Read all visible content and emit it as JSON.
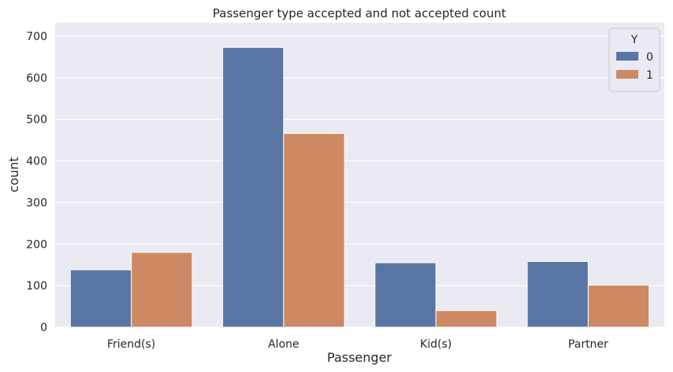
{
  "chart_data": {
    "type": "bar",
    "title": "Passenger type accepted and not accepted count",
    "xlabel": "Passenger",
    "ylabel": "count",
    "categories": [
      "Friend(s)",
      "Alone",
      "Kid(s)",
      "Partner"
    ],
    "series": [
      {
        "name": "0",
        "values": [
          138,
          673,
          155,
          158
        ],
        "color": "#5975a4"
      },
      {
        "name": "1",
        "values": [
          180,
          466,
          40,
          101
        ],
        "color": "#cc8963"
      }
    ],
    "ylim": [
      0,
      700
    ],
    "yticks": [
      0,
      100,
      200,
      300,
      400,
      500,
      600,
      700
    ],
    "grid": true,
    "legend": {
      "title": "Y",
      "position": "top-right"
    },
    "background_color": "#eaeaf2"
  }
}
